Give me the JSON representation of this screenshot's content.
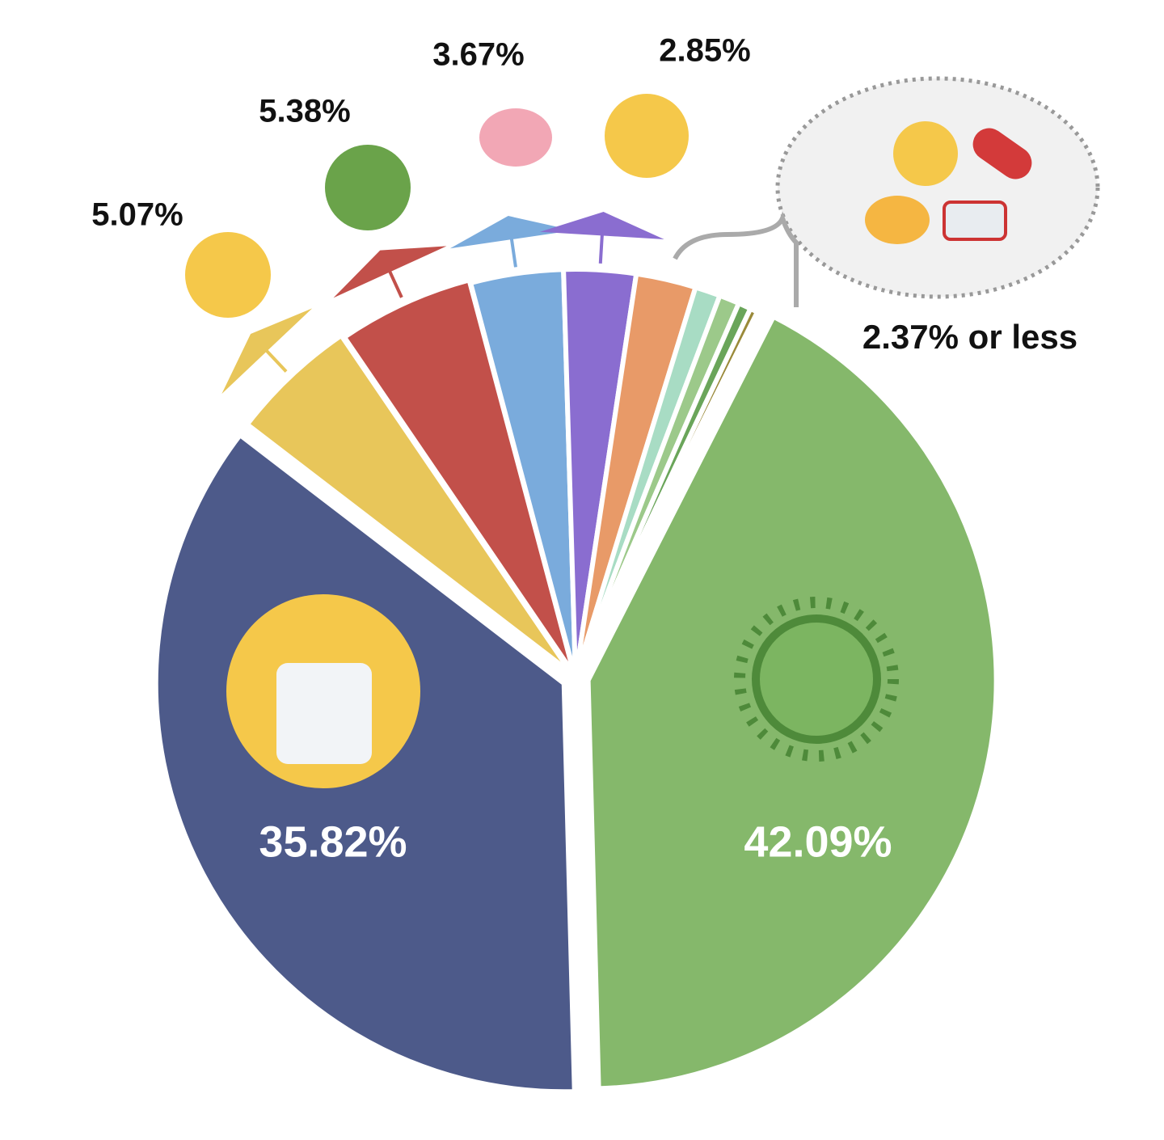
{
  "chart_data": {
    "type": "pie",
    "categories": [
      null,
      null,
      null,
      null,
      null,
      null,
      null,
      null,
      null,
      null,
      null,
      null
    ],
    "values": [
      42.09,
      35.82,
      5.07,
      5.38,
      3.67,
      2.85,
      2.37,
      1.0,
      0.8,
      0.5,
      0.3,
      0.15
    ],
    "value_labels": [
      "42.09%",
      "35.82%",
      "5.07%",
      "5.38%",
      "3.67%",
      "2.85%",
      null,
      null,
      null,
      null,
      null,
      null
    ],
    "colors": [
      "#85b86b",
      "#4d5a8a",
      "#e8c65a",
      "#c2504a",
      "#7aabdc",
      "#8a6dd0",
      "#e89a68",
      "#a8dcc4",
      "#9cc98a",
      "#6aa55a",
      "#9a8a3a",
      "#2e4a7a"
    ],
    "annotation": "2.37% or less"
  }
}
